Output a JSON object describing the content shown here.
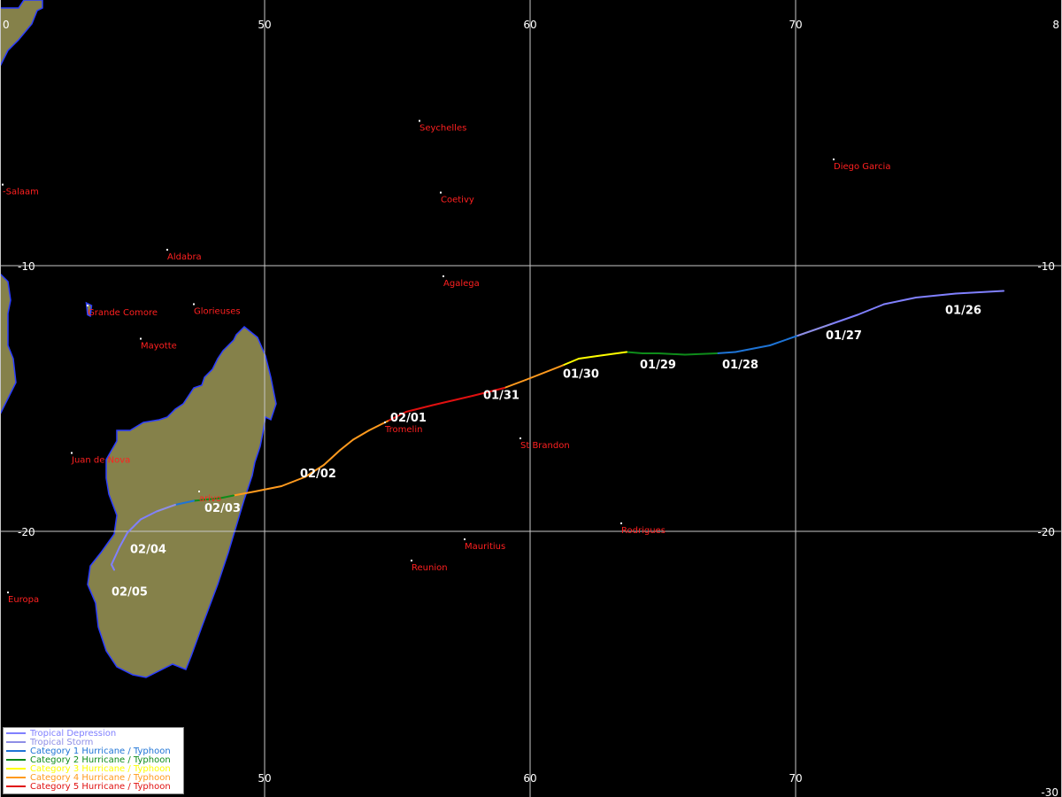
{
  "map": {
    "colors": {
      "background": "#000000",
      "land": "#85814a",
      "coast": "#2a3cff",
      "grid": "#c8c8c8",
      "place_label": "#ff2020",
      "date_label": "#ffffff"
    },
    "grid_labels": {
      "top_left_corner": "0",
      "top_right_corner": "8",
      "lon_top": [
        "50",
        "60",
        "70"
      ],
      "lon_bottom": [
        "50",
        "60",
        "70"
      ],
      "lat_left": [
        "-10",
        "-20"
      ],
      "lat_right": [
        "-10",
        "-20"
      ],
      "bottom_right": "-30"
    },
    "places": [
      {
        "name": "Seychelles",
        "lon": 55.8,
        "lat": -4.55
      },
      {
        "name": "Diego Garcia",
        "lon": 71.4,
        "lat": -6.0
      },
      {
        "name": "-Salaam",
        "lon": 40.1,
        "lat": -6.95
      },
      {
        "name": "Coetivy",
        "lon": 56.6,
        "lat": -7.25
      },
      {
        "name": "Aldabra",
        "lon": 46.3,
        "lat": -9.4
      },
      {
        "name": "Agalega",
        "lon": 56.7,
        "lat": -10.4
      },
      {
        "name": "Grande Comore",
        "lon": 43.3,
        "lat": -11.5
      },
      {
        "name": "Glorieuses",
        "lon": 47.3,
        "lat": -11.45
      },
      {
        "name": "Mayotte",
        "lon": 45.3,
        "lat": -12.75
      },
      {
        "name": "Tromelin",
        "lon": 54.5,
        "lat": -15.9
      },
      {
        "name": "St Brandon",
        "lon": 59.6,
        "lat": -16.5
      },
      {
        "name": "Juan de Nova",
        "lon": 42.7,
        "lat": -17.05
      },
      {
        "name": "Antananarivo",
        "lon": 47.5,
        "lat": -18.5,
        "label": "arivo"
      },
      {
        "name": "Rodrigues",
        "lon": 63.4,
        "lat": -19.7
      },
      {
        "name": "Mauritius",
        "lon": 57.5,
        "lat": -20.3
      },
      {
        "name": "Reunion",
        "lon": 55.5,
        "lat": -21.1
      },
      {
        "name": "Europa",
        "lon": 40.3,
        "lat": -22.3
      }
    ],
    "track": [
      {
        "lon": 77.8,
        "lat": -10.95,
        "cat": "td"
      },
      {
        "lon": 76.0,
        "lat": -11.05,
        "cat": "td"
      },
      {
        "lon": 74.5,
        "lat": -11.2,
        "cat": "td"
      },
      {
        "lon": 73.3,
        "lat": -11.45,
        "cat": "td"
      },
      {
        "lon": 72.3,
        "lat": -11.85,
        "cat": "td"
      },
      {
        "lon": 71.3,
        "lat": -12.2,
        "cat": "ts"
      },
      {
        "lon": 70.0,
        "lat": -12.65,
        "cat": "c1"
      },
      {
        "lon": 69.0,
        "lat": -13.0,
        "cat": "c1"
      },
      {
        "lon": 67.7,
        "lat": -13.25,
        "cat": "c1"
      },
      {
        "lon": 67.0,
        "lat": -13.3,
        "cat": "c2"
      },
      {
        "lon": 65.8,
        "lat": -13.35,
        "cat": "c2"
      },
      {
        "lon": 64.8,
        "lat": -13.3,
        "cat": "c2"
      },
      {
        "lon": 64.2,
        "lat": -13.3,
        "cat": "c2"
      },
      {
        "lon": 63.6,
        "lat": -13.25,
        "cat": "c3"
      },
      {
        "lon": 62.5,
        "lat": -13.4,
        "cat": "c3"
      },
      {
        "lon": 61.8,
        "lat": -13.5,
        "cat": "c3"
      },
      {
        "lon": 61.2,
        "lat": -13.75,
        "cat": "c4"
      },
      {
        "lon": 59.8,
        "lat": -14.3,
        "cat": "c4"
      },
      {
        "lon": 59.0,
        "lat": -14.6,
        "cat": "c5"
      },
      {
        "lon": 57.8,
        "lat": -14.9,
        "cat": "c5"
      },
      {
        "lon": 56.3,
        "lat": -15.25,
        "cat": "c5"
      },
      {
        "lon": 55.3,
        "lat": -15.5,
        "cat": "c5"
      },
      {
        "lon": 54.6,
        "lat": -15.85,
        "cat": "c4"
      },
      {
        "lon": 53.9,
        "lat": -16.2,
        "cat": "c4"
      },
      {
        "lon": 53.3,
        "lat": -16.55,
        "cat": "c4"
      },
      {
        "lon": 52.8,
        "lat": -16.95,
        "cat": "c4"
      },
      {
        "lon": 52.2,
        "lat": -17.5,
        "cat": "c4"
      },
      {
        "lon": 51.5,
        "lat": -17.95,
        "cat": "c4"
      },
      {
        "lon": 50.6,
        "lat": -18.3,
        "cat": "c4"
      },
      {
        "lon": 49.6,
        "lat": -18.5,
        "cat": "c4"
      },
      {
        "lon": 48.8,
        "lat": -18.65,
        "cat": "c2"
      },
      {
        "lon": 48.3,
        "lat": -18.75,
        "cat": "c2"
      },
      {
        "lon": 47.3,
        "lat": -18.85,
        "cat": "c1"
      },
      {
        "lon": 46.6,
        "lat": -19.0,
        "cat": "ts"
      },
      {
        "lon": 45.9,
        "lat": -19.25,
        "cat": "td"
      },
      {
        "lon": 45.3,
        "lat": -19.55,
        "cat": "td"
      },
      {
        "lon": 44.8,
        "lat": -20.05,
        "cat": "td"
      },
      {
        "lon": 44.5,
        "lat": -20.6,
        "cat": "td"
      },
      {
        "lon": 44.2,
        "lat": -21.25,
        "cat": "td"
      },
      {
        "lon": 44.3,
        "lat": -21.45,
        "cat": "td"
      }
    ],
    "date_labels": [
      {
        "text": "01/26",
        "lon": 75.6,
        "lat": -11.35
      },
      {
        "text": "01/27",
        "lon": 71.1,
        "lat": -12.3
      },
      {
        "text": "01/28",
        "lon": 67.2,
        "lat": -13.4
      },
      {
        "text": "01/29",
        "lon": 64.1,
        "lat": -13.4
      },
      {
        "text": "01/30",
        "lon": 61.2,
        "lat": -13.75
      },
      {
        "text": "01/31",
        "lon": 58.2,
        "lat": -14.55
      },
      {
        "text": "02/01",
        "lon": 54.7,
        "lat": -15.4
      },
      {
        "text": "02/02",
        "lon": 51.3,
        "lat": -17.5
      },
      {
        "text": "02/03",
        "lon": 47.7,
        "lat": -18.8
      },
      {
        "text": "02/04",
        "lon": 44.9,
        "lat": -20.35
      },
      {
        "text": "02/05",
        "lon": 44.2,
        "lat": -21.95
      }
    ],
    "land": [
      [
        [
          40.0,
          -0.3
        ],
        [
          40.0,
          -2.5
        ],
        [
          40.3,
          -1.9
        ],
        [
          40.7,
          -1.5
        ],
        [
          41.2,
          -0.9
        ],
        [
          41.4,
          -0.4
        ],
        [
          41.6,
          -0.3
        ],
        [
          41.6,
          0.0
        ],
        [
          40.9,
          0.0
        ],
        [
          40.7,
          -0.3
        ]
      ],
      [
        [
          40.0,
          -10.3
        ],
        [
          40.3,
          -10.6
        ],
        [
          40.4,
          -11.3
        ],
        [
          40.3,
          -11.8
        ],
        [
          40.3,
          -13.0
        ],
        [
          40.5,
          -13.5
        ],
        [
          40.6,
          -14.4
        ],
        [
          40.3,
          -15.0
        ],
        [
          40.0,
          -15.6
        ]
      ],
      [
        [
          49.2,
          -12.3
        ],
        [
          49.7,
          -12.7
        ],
        [
          50.0,
          -13.4
        ],
        [
          50.2,
          -14.2
        ],
        [
          50.4,
          -15.2
        ],
        [
          50.2,
          -15.8
        ],
        [
          50.0,
          -15.7
        ],
        [
          49.9,
          -16.3
        ],
        [
          49.8,
          -16.8
        ],
        [
          49.6,
          -17.4
        ],
        [
          49.5,
          -17.9
        ],
        [
          49.2,
          -18.8
        ],
        [
          48.9,
          -19.8
        ],
        [
          48.6,
          -20.8
        ],
        [
          48.2,
          -22.0
        ],
        [
          47.6,
          -23.6
        ],
        [
          47.2,
          -24.7
        ],
        [
          47.0,
          -25.2
        ],
        [
          46.5,
          -25.0
        ],
        [
          45.5,
          -25.5
        ],
        [
          45.0,
          -25.4
        ],
        [
          44.4,
          -25.1
        ],
        [
          44.0,
          -24.5
        ],
        [
          43.7,
          -23.6
        ],
        [
          43.6,
          -22.7
        ],
        [
          43.3,
          -22.0
        ],
        [
          43.4,
          -21.3
        ],
        [
          43.8,
          -20.8
        ],
        [
          44.3,
          -20.1
        ],
        [
          44.4,
          -19.4
        ],
        [
          44.1,
          -18.6
        ],
        [
          44.0,
          -18.0
        ],
        [
          44.0,
          -17.3
        ],
        [
          44.4,
          -16.6
        ],
        [
          44.4,
          -16.2
        ],
        [
          44.9,
          -16.2
        ],
        [
          45.4,
          -15.9
        ],
        [
          46.0,
          -15.8
        ],
        [
          46.3,
          -15.7
        ],
        [
          46.6,
          -15.4
        ],
        [
          46.9,
          -15.2
        ],
        [
          47.1,
          -14.9
        ],
        [
          47.3,
          -14.6
        ],
        [
          47.6,
          -14.5
        ],
        [
          47.7,
          -14.2
        ],
        [
          48.0,
          -13.9
        ],
        [
          48.2,
          -13.5
        ],
        [
          48.4,
          -13.2
        ],
        [
          48.6,
          -13.0
        ],
        [
          48.8,
          -12.8
        ],
        [
          48.9,
          -12.6
        ],
        [
          49.0,
          -12.5
        ]
      ],
      [
        [
          43.25,
          -11.4
        ],
        [
          43.45,
          -11.5
        ],
        [
          43.4,
          -11.9
        ],
        [
          43.3,
          -11.85
        ]
      ]
    ]
  },
  "legend": {
    "items": [
      {
        "label": "Tropical Depression",
        "color": "#8080ff"
      },
      {
        "label": "Tropical Storm",
        "color": "#8e8ee6"
      },
      {
        "label": "Category 1 Hurricane / Typhoon",
        "color": "#1e74d6"
      },
      {
        "label": "Category 2 Hurricane / Typhoon",
        "color": "#0e8c1a"
      },
      {
        "label": "Category 3 Hurricane / Typhoon",
        "color": "#ffff00"
      },
      {
        "label": "Category 4 Hurricane / Typhoon",
        "color": "#ff9a1e"
      },
      {
        "label": "Category 5 Hurricane / Typhoon",
        "color": "#e01010"
      }
    ]
  },
  "track_colors": {
    "td": "#8080ff",
    "ts": "#8e8ee6",
    "c1": "#1e74d6",
    "c2": "#0e8c1a",
    "c3": "#ffff00",
    "c4": "#ff9a1e",
    "c5": "#e01010"
  }
}
